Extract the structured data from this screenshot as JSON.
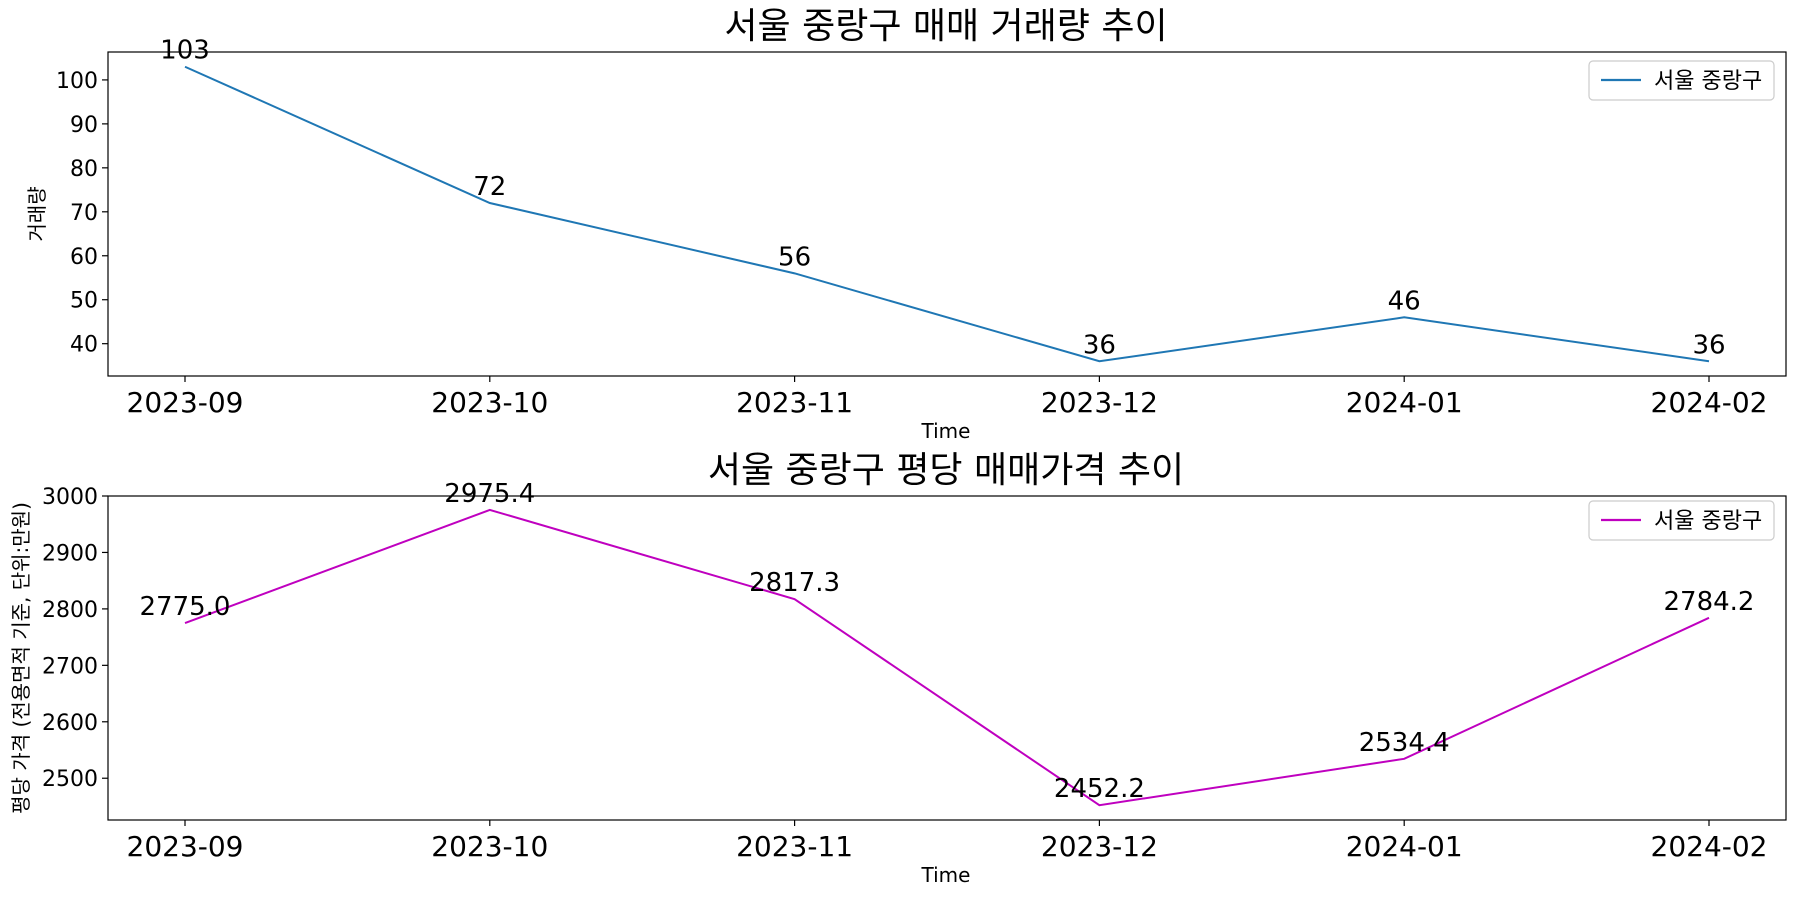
{
  "chart_data": [
    {
      "type": "line",
      "title": "서울 중랑구 매매 거래량 추이",
      "xlabel": "Time",
      "ylabel": "거래량",
      "categories": [
        "2023-09",
        "2023-10",
        "2023-11",
        "2023-12",
        "2024-01",
        "2024-02"
      ],
      "series": [
        {
          "name": "서울 중랑구",
          "values": [
            103,
            72,
            56,
            36,
            46,
            36
          ],
          "color": "#1f77b4"
        }
      ],
      "data_labels": [
        "103",
        "72",
        "56",
        "36",
        "46",
        "36"
      ],
      "ylim": [
        32.65,
        106.35
      ],
      "yticks": [
        40,
        50,
        60,
        70,
        80,
        90,
        100
      ],
      "legend": "top-right",
      "grid": false
    },
    {
      "type": "line",
      "title": "서울 중랑구 평당 매매가격 추이",
      "xlabel": "Time",
      "ylabel": "평당 가격 (전용면적 기준, 단위:만원)",
      "categories": [
        "2023-09",
        "2023-10",
        "2023-11",
        "2023-12",
        "2024-01",
        "2024-02"
      ],
      "series": [
        {
          "name": "서울 중랑구",
          "values": [
            2775.0,
            2975.4,
            2817.3,
            2452.2,
            2534.4,
            2784.2
          ],
          "color": "#bf00bf"
        }
      ],
      "data_labels": [
        "2775.0",
        "2975.4",
        "2817.3",
        "2452.2",
        "2534.4",
        "2784.2"
      ],
      "ylim": [
        2426.0,
        3000.0
      ],
      "yticks": [
        2500,
        2600,
        2700,
        2800,
        2900,
        3000
      ],
      "legend": "top-right",
      "grid": false
    }
  ]
}
